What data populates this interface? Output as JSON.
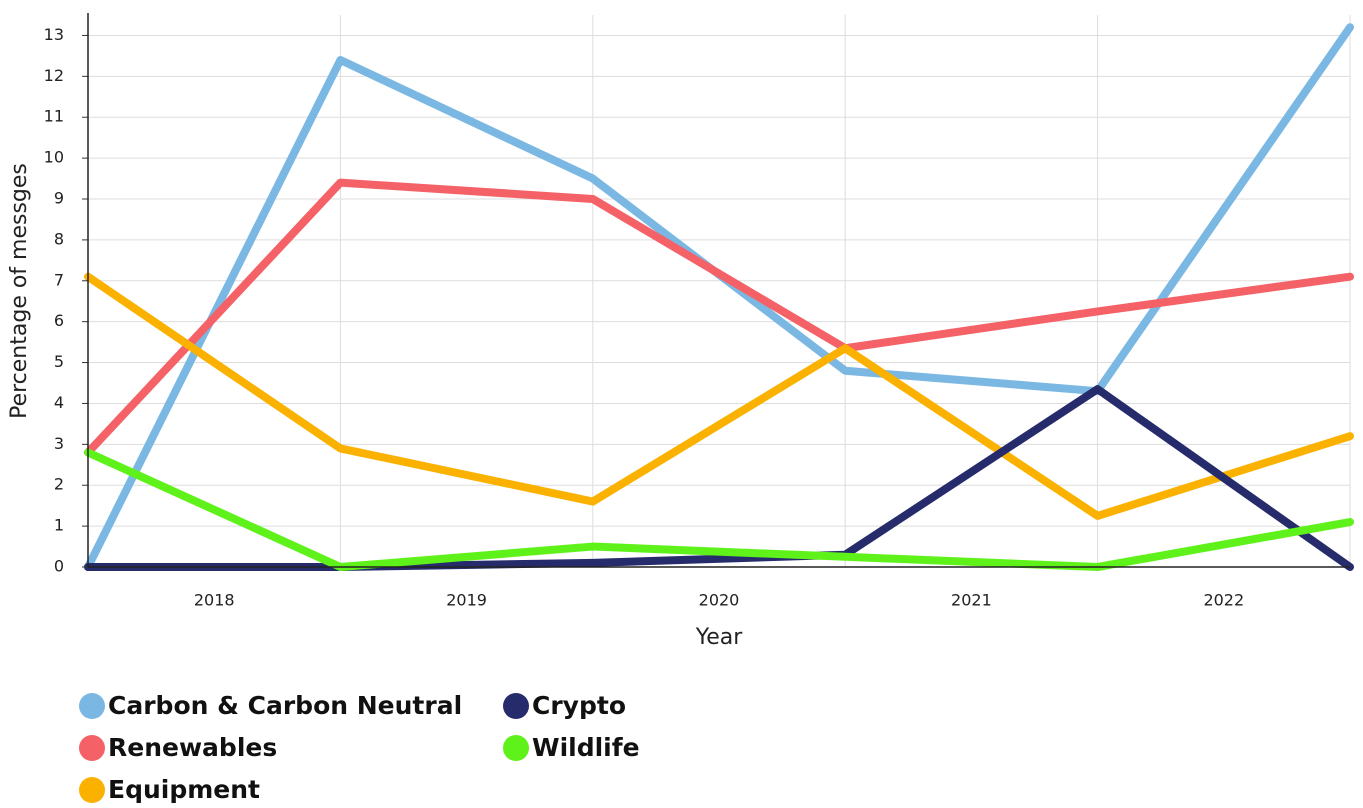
{
  "chart_data": {
    "type": "line",
    "x_label": "Year",
    "y_label": "Percentage of messges",
    "x": [
      2017.5,
      2018.5,
      2019.5,
      2020.5,
      2021.5,
      2022.5
    ],
    "xlim": [
      2017.5,
      2022.5
    ],
    "xticks": [
      2018,
      2019,
      2020,
      2021,
      2022
    ],
    "ylim": [
      0,
      13.5
    ],
    "yticks": [
      0,
      1,
      2,
      3,
      4,
      5,
      6,
      7,
      8,
      9,
      10,
      11,
      12,
      13
    ],
    "grid": true,
    "series": [
      {
        "name": "Carbon & Carbon Neutral",
        "color": "#7ab8e3",
        "values": [
          0,
          12.4,
          9.5,
          4.8,
          4.3,
          13.2
        ]
      },
      {
        "name": "Renewables",
        "color": "#f46267",
        "values": [
          2.8,
          9.4,
          9.0,
          5.35,
          6.25,
          7.1
        ]
      },
      {
        "name": "Equipment",
        "color": "#fbb100",
        "values": [
          7.1,
          2.9,
          1.6,
          5.35,
          1.25,
          3.2
        ]
      },
      {
        "name": "Crypto",
        "color": "#262c6b",
        "values": [
          0,
          0,
          0.1,
          0.3,
          4.35,
          0
        ]
      },
      {
        "name": "Wildlife",
        "color": "#5ff21a",
        "values": [
          2.8,
          0,
          0.5,
          0.25,
          0,
          1.1
        ]
      }
    ]
  }
}
